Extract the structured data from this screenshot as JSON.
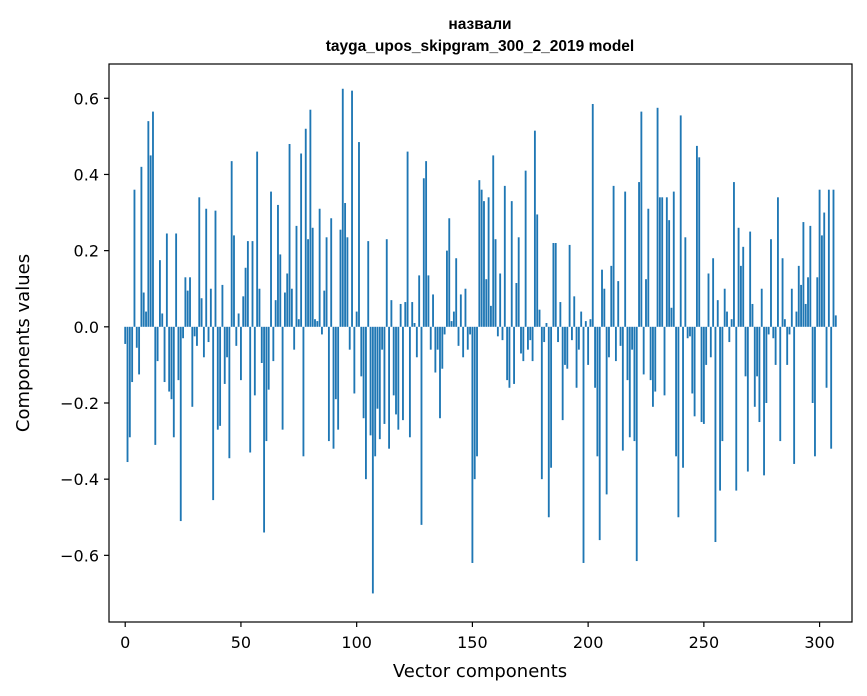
{
  "chart_data": {
    "type": "bar",
    "title": "назвали",
    "subtitle": "tayga_upos_skipgram_300_2_2019 model",
    "xlabel": "Vector components",
    "ylabel": "Components values",
    "xlim": [
      -7,
      314
    ],
    "ylim": [
      -0.775,
      0.69
    ],
    "xticks": [
      0,
      50,
      100,
      150,
      200,
      250,
      300
    ],
    "yticks": [
      -0.6,
      -0.4,
      -0.2,
      0.0,
      0.2,
      0.4,
      0.6
    ],
    "xtick_labels": [
      "0",
      "50",
      "100",
      "150",
      "200",
      "250",
      "300"
    ],
    "ytick_labels": [
      "−0.6",
      "−0.4",
      "−0.2",
      "0.0",
      "0.2",
      "0.4",
      "0.6"
    ],
    "grid": false,
    "color": "#1f77b4",
    "x_start": 0,
    "values": [
      -0.045,
      -0.355,
      -0.29,
      -0.145,
      0.36,
      -0.055,
      -0.125,
      0.42,
      0.09,
      0.04,
      0.54,
      0.45,
      0.565,
      -0.31,
      -0.09,
      0.175,
      0.035,
      -0.145,
      0.245,
      -0.17,
      -0.19,
      -0.29,
      0.245,
      -0.14,
      -0.51,
      -0.03,
      0.13,
      0.095,
      0.13,
      -0.21,
      -0.025,
      -0.05,
      0.34,
      0.075,
      -0.08,
      0.31,
      -0.04,
      0.1,
      -0.455,
      0.305,
      -0.27,
      -0.26,
      0.11,
      -0.15,
      -0.08,
      -0.345,
      0.435,
      0.24,
      -0.05,
      0.035,
      -0.14,
      0.08,
      0.155,
      0.225,
      -0.33,
      0.225,
      -0.18,
      0.46,
      0.1,
      -0.095,
      -0.54,
      -0.3,
      -0.165,
      0.355,
      -0.09,
      0.07,
      0.32,
      0.19,
      -0.27,
      0.09,
      0.14,
      0.48,
      0.1,
      -0.06,
      0.265,
      0.02,
      0.455,
      -0.34,
      0.52,
      0.23,
      0.57,
      0.26,
      0.02,
      0.015,
      0.31,
      -0.02,
      0.095,
      0.235,
      -0.3,
      0.285,
      -0.32,
      -0.19,
      -0.27,
      0.255,
      0.625,
      0.325,
      0.235,
      -0.06,
      0.62,
      -0.175,
      0.04,
      0.485,
      -0.13,
      -0.24,
      -0.4,
      0.225,
      -0.285,
      -0.7,
      -0.34,
      -0.215,
      -0.295,
      -0.06,
      -0.255,
      0.23,
      -0.32,
      0.07,
      -0.18,
      -0.23,
      -0.27,
      0.06,
      -0.245,
      0.065,
      0.46,
      -0.29,
      0.065,
      0.01,
      -0.08,
      0.135,
      -0.52,
      0.39,
      0.435,
      0.135,
      -0.06,
      0.085,
      -0.12,
      -0.06,
      -0.24,
      -0.11,
      -0.02,
      0.2,
      0.285,
      0.015,
      0.04,
      0.18,
      -0.05,
      0.085,
      -0.08,
      0.1,
      -0.06,
      -0.02,
      -0.62,
      -0.4,
      -0.34,
      0.385,
      0.36,
      0.33,
      0.125,
      0.34,
      0.055,
      0.45,
      0.23,
      -0.025,
      0.14,
      -0.035,
      0.37,
      -0.14,
      -0.16,
      0.33,
      -0.15,
      0.115,
      0.235,
      -0.07,
      -0.09,
      0.41,
      -0.06,
      -0.035,
      -0.09,
      0.515,
      0.295,
      0.045,
      -0.4,
      -0.04,
      0.01,
      -0.5,
      -0.37,
      0.22,
      0.22,
      -0.04,
      0.065,
      -0.245,
      -0.1,
      -0.11,
      0.215,
      -0.035,
      0.08,
      -0.16,
      -0.06,
      0.04,
      -0.62,
      0.015,
      -0.1,
      0.02,
      0.585,
      -0.16,
      -0.34,
      -0.56,
      0.15,
      0.1,
      -0.44,
      -0.08,
      0.16,
      0.37,
      -0.09,
      0.12,
      -0.05,
      -0.325,
      0.355,
      -0.14,
      -0.29,
      -0.06,
      -0.3,
      -0.615,
      0.38,
      0.565,
      -0.125,
      0.125,
      0.31,
      -0.14,
      -0.21,
      -0.17,
      0.575,
      0.34,
      0.34,
      -0.18,
      0.34,
      0.28,
      0.05,
      0.355,
      -0.34,
      -0.5,
      0.555,
      -0.37,
      0.235,
      -0.03,
      -0.025,
      -0.175,
      -0.235,
      0.475,
      0.445,
      -0.25,
      -0.255,
      -0.1,
      0.14,
      -0.08,
      0.18,
      -0.565,
      0.07,
      -0.43,
      -0.3,
      0.1,
      0.04,
      -0.04,
      0.02,
      0.38,
      -0.43,
      0.26,
      0.16,
      0.21,
      -0.13,
      -0.38,
      0.25,
      0.06,
      -0.21,
      -0.13,
      -0.25,
      0.1,
      -0.39,
      -0.2,
      -0.02,
      0.23,
      -0.03,
      -0.1,
      0.34,
      -0.3,
      0.18,
      0.02,
      -0.1,
      -0.02,
      0.1,
      -0.36,
      0.04,
      0.16,
      0.11,
      0.275,
      0.06,
      0.13,
      0.265,
      -0.2,
      -0.34,
      0.13,
      0.36,
      0.24,
      0.3,
      -0.16,
      0.36,
      -0.32,
      0.36,
      0.03
    ]
  }
}
